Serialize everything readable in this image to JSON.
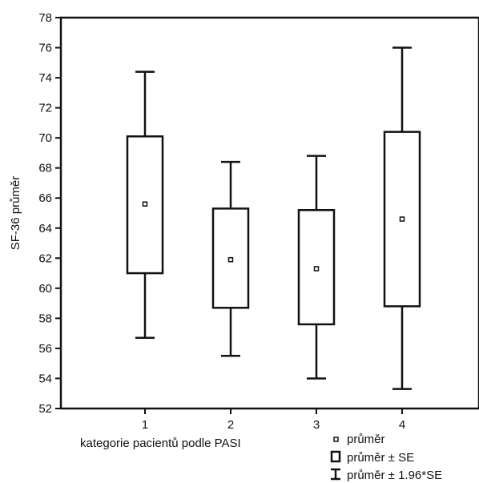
{
  "chart_data": {
    "type": "box",
    "title": "",
    "xlabel": "kategorie pacientů podle PASI",
    "ylabel": "SF-36 průměr",
    "ylim": [
      52,
      78
    ],
    "yticks": [
      "52",
      "54",
      "56",
      "58",
      "60",
      "62",
      "64",
      "66",
      "68",
      "70",
      "72",
      "74",
      "76",
      "78"
    ],
    "categories": [
      "1",
      "2",
      "3",
      "4"
    ],
    "series": [
      {
        "mean": [
          65.6,
          61.9,
          61.3,
          64.6
        ],
        "se_low": [
          61.0,
          58.7,
          57.6,
          58.8
        ],
        "se_high": [
          70.1,
          65.3,
          65.2,
          70.4
        ],
        "ci_low": [
          56.7,
          55.5,
          54.0,
          53.3
        ],
        "ci_high": [
          74.4,
          68.4,
          68.8,
          76.0
        ]
      }
    ],
    "legend": {
      "placement": "bottom-right",
      "items": [
        {
          "symbol": "mean-marker",
          "label": "průměr"
        },
        {
          "symbol": "box",
          "label": "průměr ± SE"
        },
        {
          "symbol": "whisker",
          "label": "průměr ± 1.96*SE"
        }
      ]
    },
    "grid": false
  }
}
